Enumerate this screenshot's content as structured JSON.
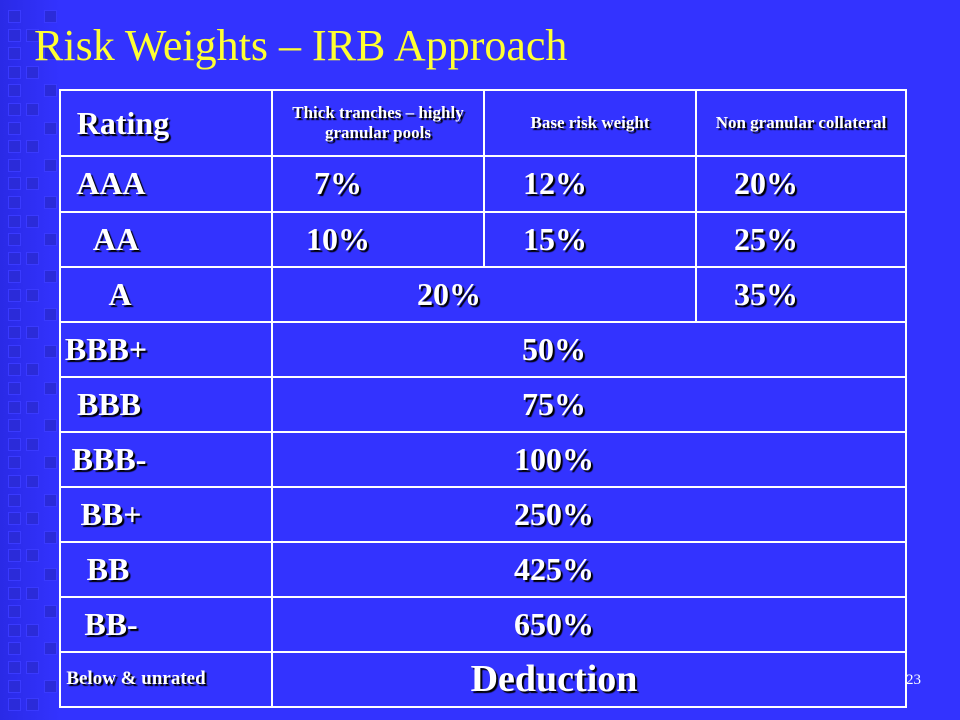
{
  "slide": {
    "title": "Risk Weights – IRB Approach",
    "number": "23",
    "colors": {
      "background": "#3333ff",
      "title": "#ffff33",
      "text": "#ffffff"
    }
  },
  "table": {
    "headers": {
      "rating": "Rating",
      "thick": "Thick tranches – highly granular pools",
      "base": "Base risk weight",
      "non_granular": "Non granular collateral"
    },
    "rows": [
      {
        "rating": "AAA",
        "thick": "7%",
        "base": "12%",
        "non_granular": "20%"
      },
      {
        "rating": "AA",
        "thick": "10%",
        "base": "15%",
        "non_granular": "25%"
      },
      {
        "rating": "A",
        "merged": "20%",
        "non_granular": "35%"
      },
      {
        "rating": "BBB+",
        "all": "50%"
      },
      {
        "rating": "BBB",
        "all": "75%"
      },
      {
        "rating": "BBB-",
        "all": "100%"
      },
      {
        "rating": "BB+",
        "all": "250%"
      },
      {
        "rating": "BB",
        "all": "425%"
      },
      {
        "rating": "BB-",
        "all": "650%"
      },
      {
        "rating": "Below & unrated",
        "all": "Deduction"
      }
    ]
  }
}
